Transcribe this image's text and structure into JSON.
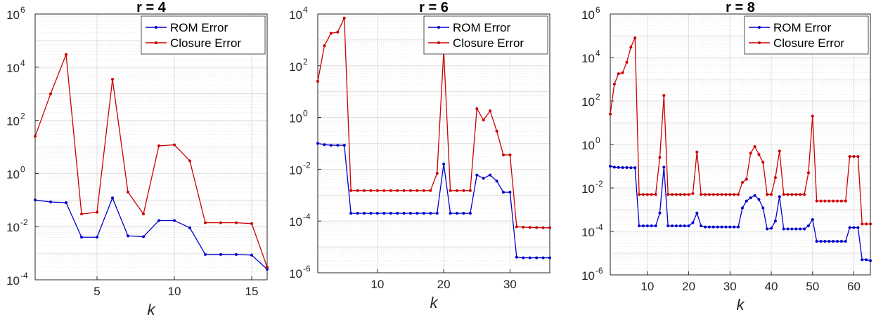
{
  "chart_data": [
    {
      "type": "line",
      "title": "r = 4",
      "xlabel": "k",
      "ylabel": "",
      "yscale": "log",
      "xlim": [
        1,
        16
      ],
      "ylim_exp": [
        -4,
        6
      ],
      "grid": true,
      "legend": "top-right",
      "x_ticks": [
        5,
        10,
        15
      ],
      "x_tick_labels": [
        "5",
        "10",
        "15"
      ],
      "y_ticks": [
        -4,
        -2,
        0,
        2,
        4,
        6
      ],
      "y_tick_labels": [
        [
          "10",
          "-4"
        ],
        [
          "10",
          "-2"
        ],
        [
          "10",
          "0"
        ],
        [
          "10",
          "2"
        ],
        [
          "10",
          "4"
        ],
        [
          "10",
          "6"
        ]
      ],
      "series": [
        {
          "name": "ROM Error",
          "color": "#0000cc",
          "x": [
            1,
            2,
            3,
            4,
            5,
            6,
            7,
            8,
            9,
            10,
            11,
            12,
            13,
            14,
            15,
            16
          ],
          "y": [
            0.1,
            0.085,
            0.08,
            0.004,
            0.004,
            0.12,
            0.0045,
            0.0042,
            0.017,
            0.017,
            0.009,
            0.0009,
            0.0009,
            0.0009,
            0.00085,
            0.00025
          ]
        },
        {
          "name": "Closure Error",
          "color": "#cc0000",
          "x": [
            1,
            2,
            3,
            4,
            5,
            6,
            7,
            8,
            9,
            10,
            11,
            12,
            13,
            14,
            15,
            16
          ],
          "y": [
            25,
            1000,
            30000,
            0.03,
            0.035,
            3500,
            0.2,
            0.03,
            11,
            12,
            3,
            0.014,
            0.014,
            0.014,
            0.013,
            0.0003
          ]
        }
      ]
    },
    {
      "type": "line",
      "title": "r = 6",
      "xlabel": "k",
      "ylabel": "",
      "yscale": "log",
      "xlim": [
        1,
        36
      ],
      "ylim_exp": [
        -6,
        4
      ],
      "grid": true,
      "legend": "top-right",
      "x_ticks": [
        10,
        20,
        30
      ],
      "x_tick_labels": [
        "10",
        "20",
        "30"
      ],
      "y_ticks": [
        -6,
        -4,
        -2,
        0,
        2,
        4
      ],
      "y_tick_labels": [
        [
          "10",
          "-6"
        ],
        [
          "10",
          "-4"
        ],
        [
          "10",
          "-2"
        ],
        [
          "10",
          "0"
        ],
        [
          "10",
          "2"
        ],
        [
          "10",
          "4"
        ]
      ],
      "series": [
        {
          "name": "ROM Error",
          "color": "#0000cc",
          "x": [
            1,
            2,
            3,
            4,
            5,
            6,
            7,
            8,
            9,
            10,
            11,
            12,
            13,
            14,
            15,
            16,
            17,
            18,
            19,
            20,
            21,
            22,
            23,
            24,
            25,
            26,
            27,
            28,
            29,
            30,
            31,
            32,
            33,
            34,
            35,
            36
          ],
          "y": [
            0.1,
            0.09,
            0.085,
            0.085,
            0.085,
            0.0002,
            0.0002,
            0.0002,
            0.0002,
            0.0002,
            0.0002,
            0.0002,
            0.0002,
            0.0002,
            0.0002,
            0.0002,
            0.0002,
            0.0002,
            0.0002,
            0.016,
            0.0002,
            0.0002,
            0.0002,
            0.0002,
            0.006,
            0.0045,
            0.006,
            0.0035,
            0.0013,
            0.0013,
            4e-06,
            3.8e-06,
            3.8e-06,
            3.8e-06,
            3.8e-06,
            3.8e-06
          ]
        },
        {
          "name": "Closure Error",
          "color": "#cc0000",
          "x": [
            1,
            2,
            3,
            4,
            5,
            6,
            7,
            8,
            9,
            10,
            11,
            12,
            13,
            14,
            15,
            16,
            17,
            18,
            19,
            20,
            21,
            22,
            23,
            24,
            25,
            26,
            27,
            28,
            29,
            30,
            31,
            32,
            33,
            34,
            35,
            36
          ],
          "y": [
            25,
            600,
            1800,
            2000,
            7000,
            0.0015,
            0.0015,
            0.0015,
            0.0015,
            0.0015,
            0.0015,
            0.0015,
            0.0015,
            0.0015,
            0.0015,
            0.0015,
            0.0015,
            0.0015,
            0.007,
            400,
            0.0015,
            0.0015,
            0.0015,
            0.0015,
            2.2,
            0.8,
            1.8,
            0.3,
            0.036,
            0.036,
            6e-05,
            5.8e-05,
            5.7e-05,
            5.6e-05,
            5.5e-05,
            5.5e-05
          ]
        }
      ]
    },
    {
      "type": "line",
      "title": "r = 8",
      "xlabel": "k",
      "ylabel": "",
      "yscale": "log",
      "xlim": [
        1,
        64
      ],
      "ylim_exp": [
        -6,
        6
      ],
      "grid": true,
      "legend": "top-right",
      "x_ticks": [
        10,
        20,
        30,
        40,
        50,
        60
      ],
      "x_tick_labels": [
        "10",
        "20",
        "30",
        "40",
        "50",
        "60"
      ],
      "y_ticks": [
        -6,
        -4,
        -2,
        0,
        2,
        4,
        6
      ],
      "y_tick_labels": [
        [
          "10",
          "-6"
        ],
        [
          "10",
          "-4"
        ],
        [
          "10",
          "-2"
        ],
        [
          "10",
          "0"
        ],
        [
          "10",
          "2"
        ],
        [
          "10",
          "4"
        ],
        [
          "10",
          "6"
        ]
      ],
      "series": [
        {
          "name": "ROM Error",
          "color": "#0000cc",
          "x": [
            1,
            2,
            3,
            4,
            5,
            6,
            7,
            8,
            9,
            10,
            11,
            12,
            13,
            14,
            15,
            16,
            17,
            18,
            19,
            20,
            21,
            22,
            23,
            24,
            25,
            26,
            27,
            28,
            29,
            30,
            31,
            32,
            33,
            34,
            35,
            36,
            37,
            38,
            39,
            40,
            41,
            42,
            43,
            44,
            45,
            46,
            47,
            48,
            49,
            50,
            51,
            52,
            53,
            54,
            55,
            56,
            57,
            58,
            59,
            60,
            61,
            62,
            63,
            64
          ],
          "y": [
            0.1,
            0.09,
            0.088,
            0.086,
            0.086,
            0.085,
            0.085,
            0.00018,
            0.00018,
            0.00018,
            0.00018,
            0.00018,
            0.0007,
            0.09,
            0.00018,
            0.00018,
            0.00018,
            0.00018,
            0.00018,
            0.00018,
            0.00025,
            0.0007,
            0.00018,
            0.00016,
            0.00016,
            0.00016,
            0.00016,
            0.00016,
            0.00016,
            0.00016,
            0.00016,
            0.00016,
            0.0012,
            0.0025,
            0.0035,
            0.0045,
            0.003,
            0.0012,
            0.00013,
            0.00014,
            0.0003,
            0.004,
            0.00013,
            0.00013,
            0.00013,
            0.00013,
            0.00013,
            0.00013,
            0.00018,
            0.00035,
            3.5e-05,
            3.5e-05,
            3.5e-05,
            3.5e-05,
            3.5e-05,
            3.5e-05,
            3.5e-05,
            3.5e-05,
            0.00015,
            0.00015,
            0.00015,
            5e-06,
            5e-06,
            4.5e-06
          ]
        },
        {
          "name": "Closure Error",
          "color": "#cc0000",
          "x": [
            1,
            2,
            3,
            4,
            5,
            6,
            7,
            8,
            9,
            10,
            11,
            12,
            13,
            14,
            15,
            16,
            17,
            18,
            19,
            20,
            21,
            22,
            23,
            24,
            25,
            26,
            27,
            28,
            29,
            30,
            31,
            32,
            33,
            34,
            35,
            36,
            37,
            38,
            39,
            40,
            41,
            42,
            43,
            44,
            45,
            46,
            47,
            48,
            49,
            50,
            51,
            52,
            53,
            54,
            55,
            56,
            57,
            58,
            59,
            60,
            61,
            62,
            63,
            64
          ],
          "y": [
            25,
            600,
            1800,
            2000,
            6000,
            30000,
            80000,
            0.005,
            0.005,
            0.005,
            0.005,
            0.005,
            0.25,
            180,
            0.005,
            0.005,
            0.005,
            0.005,
            0.005,
            0.005,
            0.0055,
            0.45,
            0.005,
            0.005,
            0.005,
            0.005,
            0.005,
            0.005,
            0.005,
            0.005,
            0.005,
            0.005,
            0.018,
            0.025,
            0.4,
            0.8,
            0.35,
            0.15,
            0.005,
            0.005,
            0.03,
            0.5,
            0.005,
            0.005,
            0.005,
            0.005,
            0.005,
            0.005,
            0.05,
            20,
            0.0025,
            0.0025,
            0.0025,
            0.0025,
            0.0025,
            0.0025,
            0.0025,
            0.0025,
            0.28,
            0.28,
            0.28,
            0.00022,
            0.00022,
            0.00022
          ]
        }
      ]
    }
  ]
}
